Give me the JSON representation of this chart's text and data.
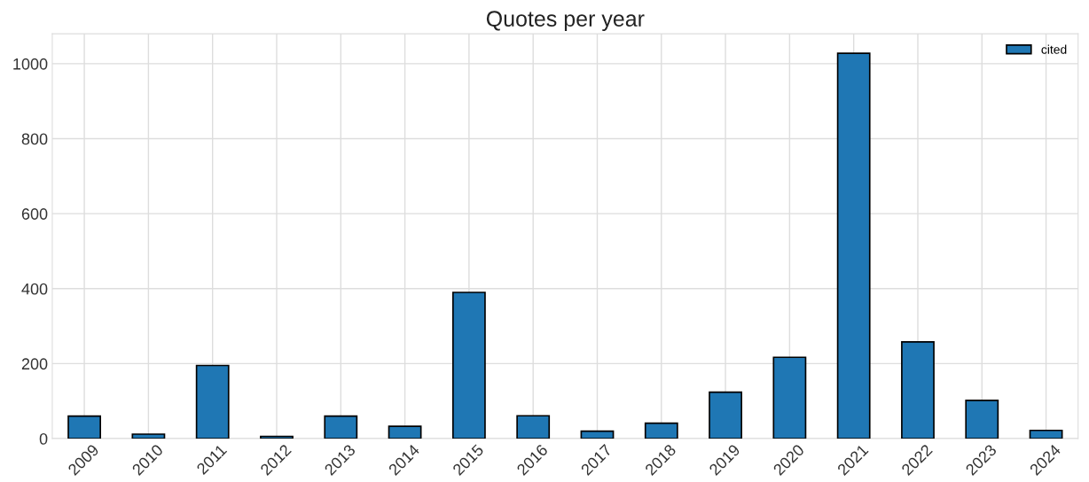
{
  "chart_data": {
    "type": "bar",
    "title": "Quotes per year",
    "categories": [
      "2009",
      "2010",
      "2011",
      "2012",
      "2013",
      "2014",
      "2015",
      "2016",
      "2017",
      "2018",
      "2019",
      "2020",
      "2021",
      "2022",
      "2023",
      "2024"
    ],
    "series": [
      {
        "name": "cited",
        "color": "#1f77b4",
        "values": [
          60,
          12,
          195,
          6,
          60,
          33,
          390,
          61,
          20,
          41,
          124,
          217,
          1028,
          258,
          102,
          22
        ]
      }
    ],
    "ylim": [
      0,
      1080
    ],
    "yticks": [
      0,
      200,
      400,
      600,
      800,
      1000
    ],
    "grid": true,
    "legend": "top right"
  }
}
